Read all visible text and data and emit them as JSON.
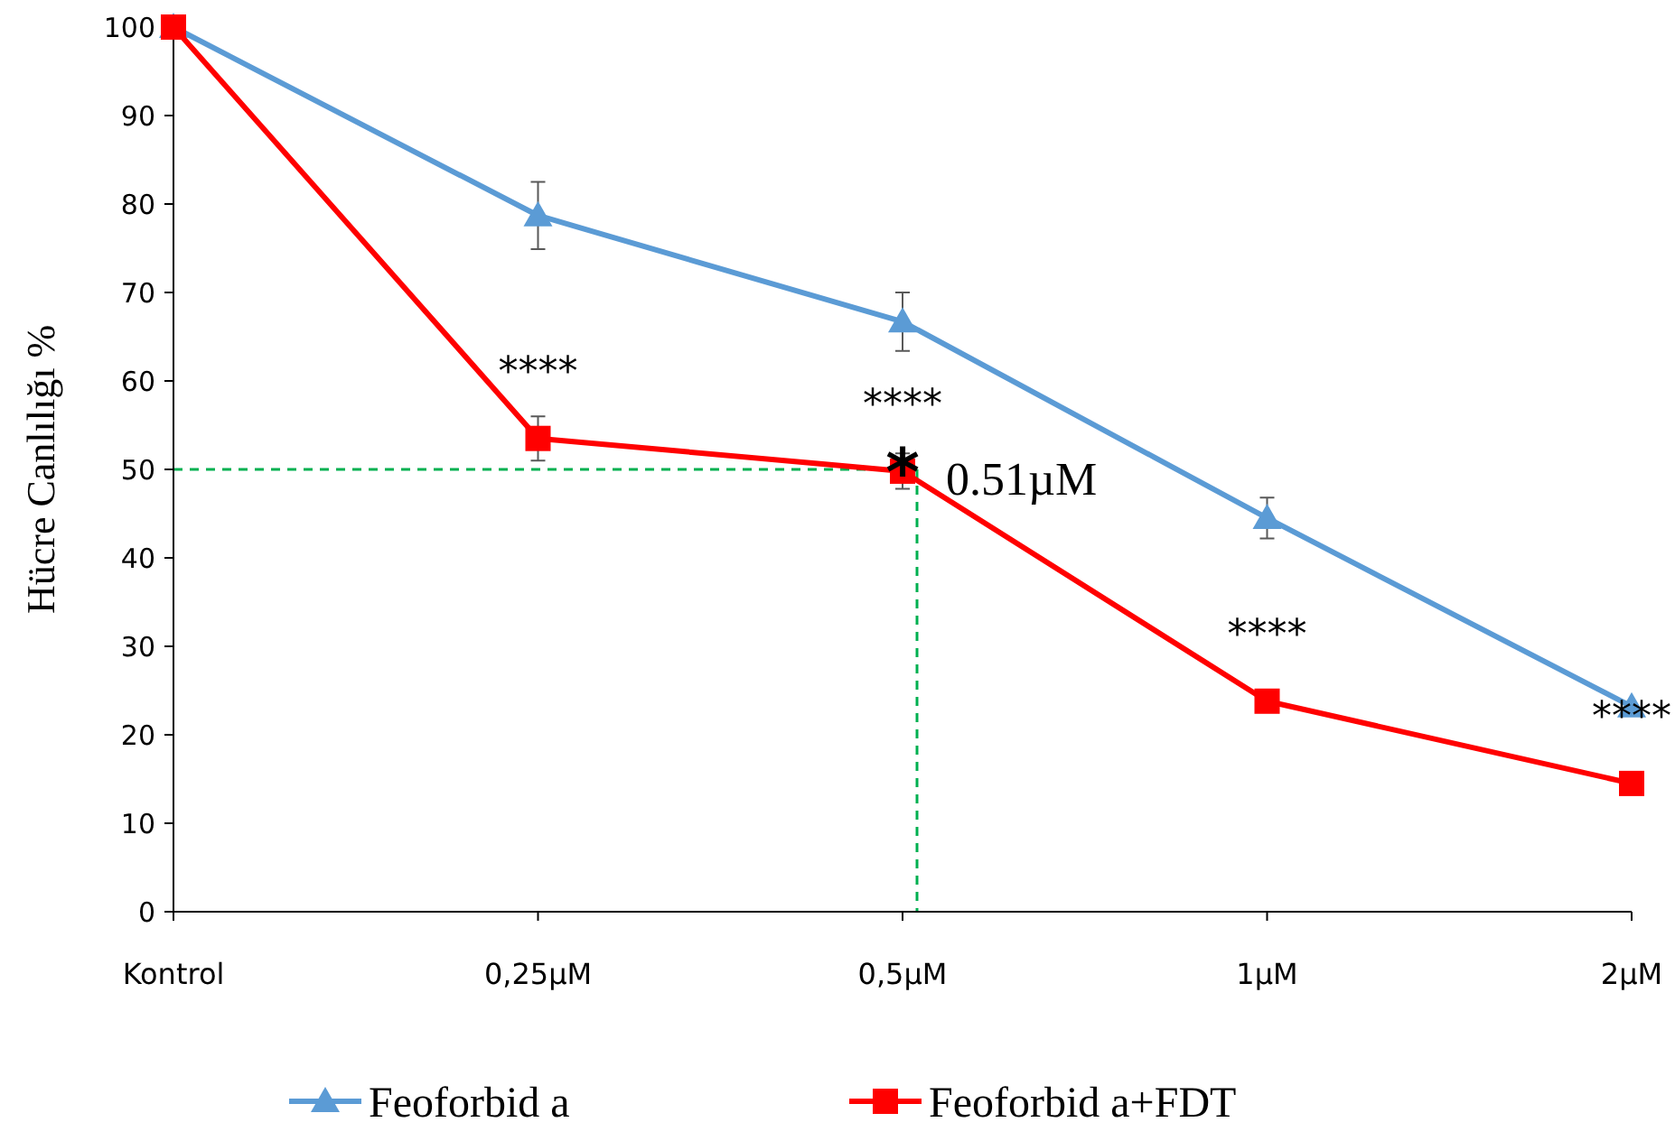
{
  "chart_data": {
    "type": "line",
    "ylabel": "Hücre Canlılığı %",
    "categories": [
      "Kontrol",
      "0,25µM",
      "0,5µM",
      "1µM",
      "2µM"
    ],
    "series": [
      {
        "name": "Feoforbid a",
        "color": "#5b9bd5",
        "marker": "triangle",
        "values": [
          100,
          78.7,
          66.7,
          44.5,
          23.2
        ],
        "errors": [
          null,
          3.8,
          3.3,
          2.3,
          null
        ]
      },
      {
        "name": "Feoforbid a+FDT",
        "color": "#ff0000",
        "marker": "square",
        "values": [
          100,
          53.5,
          49.8,
          23.8,
          14.5
        ],
        "errors": [
          null,
          2.5,
          2,
          null,
          null
        ]
      }
    ],
    "ylim": [
      0,
      100
    ],
    "yticks": [
      0,
      10,
      20,
      30,
      40,
      50,
      60,
      70,
      80,
      90,
      100
    ],
    "grid": false,
    "legend": "bottom",
    "ref_lines": [
      {
        "axis": "y",
        "value": 50,
        "color": "#00b050",
        "line_style": "dashed"
      },
      {
        "axis": "x",
        "value": "0,5µM",
        "color": "#00b050",
        "line_style": "dashed"
      }
    ],
    "annotations": [
      {
        "text": "****",
        "x": "0,25µM",
        "y": 53.5
      },
      {
        "text": "****",
        "x": "0,5µM",
        "y": 49.8
      },
      {
        "text": "****",
        "x": "1µM",
        "y": 23.8
      },
      {
        "text": "****",
        "x": "2µM",
        "y": 14.5
      },
      {
        "text": "*",
        "x": "0,5µM",
        "y": 50
      },
      {
        "text": "0.51µM",
        "x": "0,5µM",
        "y": 49
      }
    ]
  }
}
